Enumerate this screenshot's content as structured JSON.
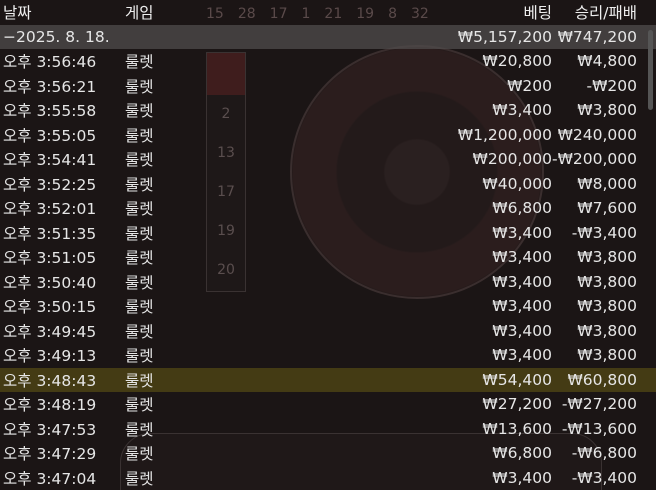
{
  "header": {
    "date": "날짜",
    "game": "게임",
    "bet": "베팅",
    "winloss": "승리/패배"
  },
  "summary": {
    "date": "−2025. 8. 18.",
    "bet": "₩5,157,200",
    "winloss": "₩747,200"
  },
  "rows": [
    {
      "time": "오후 3:56:46",
      "game": "룰렛",
      "bet": "₩20,800",
      "winloss": "₩4,800"
    },
    {
      "time": "오후 3:56:21",
      "game": "룰렛",
      "bet": "₩200",
      "winloss": "-₩200"
    },
    {
      "time": "오후 3:55:58",
      "game": "룰렛",
      "bet": "₩3,400",
      "winloss": "₩3,800"
    },
    {
      "time": "오후 3:55:05",
      "game": "룰렛",
      "bet": "₩1,200,000",
      "winloss": "₩240,000"
    },
    {
      "time": "오후 3:54:41",
      "game": "룰렛",
      "bet": "₩200,000",
      "winloss": "-₩200,000"
    },
    {
      "time": "오후 3:52:25",
      "game": "룰렛",
      "bet": "₩40,000",
      "winloss": "₩8,000"
    },
    {
      "time": "오후 3:52:01",
      "game": "룰렛",
      "bet": "₩6,800",
      "winloss": "₩7,600"
    },
    {
      "time": "오후 3:51:35",
      "game": "룰렛",
      "bet": "₩3,400",
      "winloss": "-₩3,400"
    },
    {
      "time": "오후 3:51:05",
      "game": "룰렛",
      "bet": "₩3,400",
      "winloss": "₩3,800"
    },
    {
      "time": "오후 3:50:40",
      "game": "룰렛",
      "bet": "₩3,400",
      "winloss": "₩3,800"
    },
    {
      "time": "오후 3:50:15",
      "game": "룰렛",
      "bet": "₩3,400",
      "winloss": "₩3,800"
    },
    {
      "time": "오후 3:49:45",
      "game": "룰렛",
      "bet": "₩3,400",
      "winloss": "₩3,800"
    },
    {
      "time": "오후 3:49:13",
      "game": "룰렛",
      "bet": "₩3,400",
      "winloss": "₩3,800"
    },
    {
      "time": "오후 3:48:43",
      "game": "룰렛",
      "bet": "₩54,400",
      "winloss": "₩60,800",
      "highlighted": true
    },
    {
      "time": "오후 3:48:19",
      "game": "룰렛",
      "bet": "₩27,200",
      "winloss": "-₩27,200"
    },
    {
      "time": "오후 3:47:53",
      "game": "룰렛",
      "bet": "₩13,600",
      "winloss": "-₩13,600"
    },
    {
      "time": "오후 3:47:29",
      "game": "룰렛",
      "bet": "₩6,800",
      "winloss": "-₩6,800"
    },
    {
      "time": "오후 3:47:04",
      "game": "룰렛",
      "bet": "₩3,400",
      "winloss": "-₩3,400"
    }
  ],
  "background": {
    "recent_numbers": [
      "15",
      "28",
      "17",
      "1",
      "21",
      "19",
      "8",
      "32"
    ],
    "history": [
      "2",
      "13",
      "17",
      "19",
      "20"
    ]
  }
}
